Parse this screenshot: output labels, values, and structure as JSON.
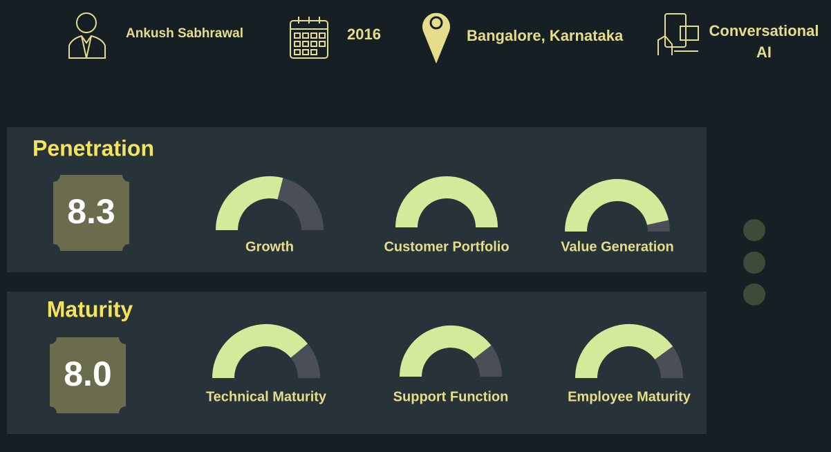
{
  "header": {
    "name": "Ankush Sabhrawal",
    "year": "2016",
    "location": "Bangalore, Karnataka",
    "domain": "Conversational AI"
  },
  "gauge_range": [
    0,
    100
  ],
  "sections": [
    {
      "title": "Penetration",
      "score": "8.3",
      "gauges": [
        {
          "label": "Growth",
          "value": 58
        },
        {
          "label": "Customer Portfolio",
          "value": 100
        },
        {
          "label": "Value Generation",
          "value": 93
        }
      ]
    },
    {
      "title": "Maturity",
      "score": "8.0",
      "gauges": [
        {
          "label": "Technical Maturity",
          "value": 78
        },
        {
          "label": "Support Function",
          "value": 79
        },
        {
          "label": "Employee Maturity",
          "value": 80
        }
      ]
    }
  ]
}
